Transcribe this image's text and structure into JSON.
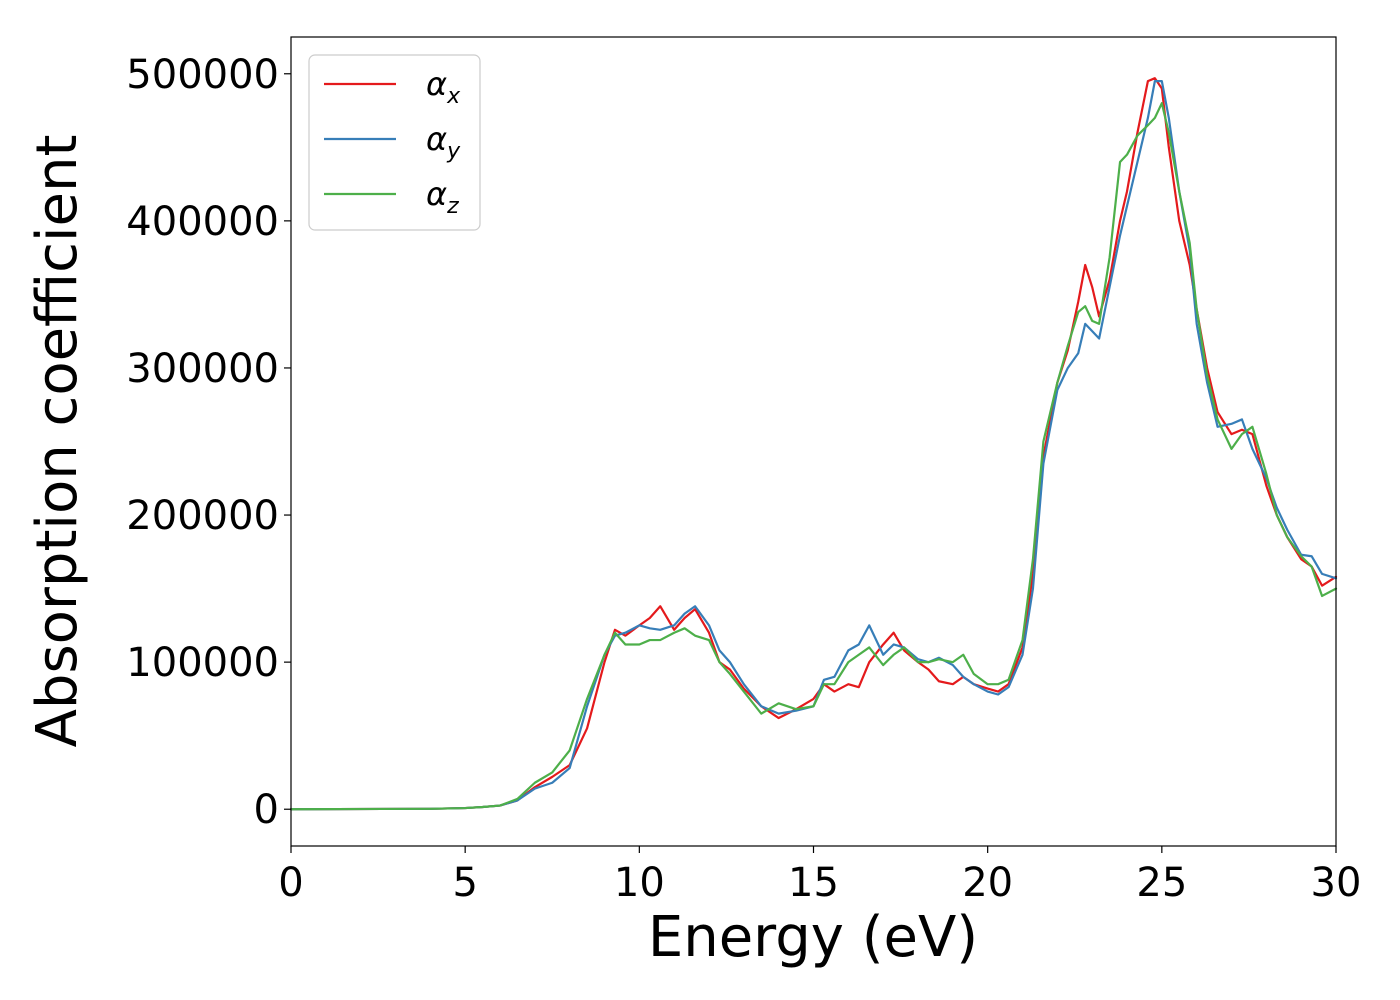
{
  "chart_data": {
    "type": "line",
    "title": "",
    "xlabel": "Energy (eV)",
    "ylabel": "Absorption coefficient",
    "xlim": [
      0,
      30
    ],
    "ylim": [
      -25000,
      525000
    ],
    "xticks": [
      0,
      5,
      10,
      15,
      20,
      25,
      30
    ],
    "yticks": [
      0,
      100000,
      200000,
      300000,
      400000,
      500000
    ],
    "grid": false,
    "legend_position": "top-left",
    "series": [
      {
        "name": "α_x",
        "symbol": "α",
        "subscript": "x",
        "color": "#e41a1c",
        "x": [
          0,
          4,
          5,
          5.5,
          6,
          6.5,
          7,
          7.5,
          8,
          8.5,
          9,
          9.3,
          9.6,
          10,
          10.3,
          10.6,
          11,
          11.3,
          11.6,
          12,
          12.3,
          12.6,
          13,
          13.5,
          14,
          14.5,
          15,
          15.3,
          15.6,
          16,
          16.3,
          16.6,
          17,
          17.3,
          17.6,
          18,
          18.3,
          18.6,
          19,
          19.3,
          19.6,
          20,
          20.3,
          20.6,
          21,
          21.3,
          21.6,
          22,
          22.3,
          22.6,
          22.8,
          23,
          23.2,
          23.5,
          23.8,
          24,
          24.3,
          24.6,
          24.8,
          25,
          25.2,
          25.5,
          25.8,
          26,
          26.3,
          26.6,
          27,
          27.3,
          27.6,
          28,
          28.3,
          28.6,
          29,
          29.3,
          29.6,
          30
        ],
        "y": [
          0,
          300,
          800,
          1500,
          2500,
          6000,
          15000,
          22000,
          30000,
          55000,
          100000,
          122000,
          118000,
          125000,
          130000,
          138000,
          122000,
          130000,
          136000,
          120000,
          100000,
          95000,
          82000,
          70000,
          62000,
          68000,
          75000,
          85000,
          80000,
          85000,
          83000,
          100000,
          112000,
          120000,
          108000,
          100000,
          95000,
          87000,
          85000,
          90000,
          85000,
          82000,
          80000,
          85000,
          110000,
          160000,
          240000,
          290000,
          312000,
          345000,
          370000,
          355000,
          335000,
          360000,
          400000,
          420000,
          460000,
          495000,
          497000,
          490000,
          450000,
          400000,
          370000,
          340000,
          300000,
          270000,
          255000,
          258000,
          255000,
          220000,
          200000,
          185000,
          170000,
          165000,
          152000,
          158000
        ]
      },
      {
        "name": "α_y",
        "symbol": "α",
        "subscript": "y",
        "color": "#377eb8",
        "x": [
          0,
          4,
          5,
          5.5,
          6,
          6.5,
          7,
          7.5,
          8,
          8.5,
          9,
          9.3,
          9.6,
          10,
          10.3,
          10.6,
          11,
          11.3,
          11.6,
          12,
          12.3,
          12.6,
          13,
          13.5,
          14,
          14.5,
          15,
          15.3,
          15.6,
          16,
          16.3,
          16.6,
          17,
          17.3,
          17.6,
          18,
          18.3,
          18.6,
          19,
          19.3,
          19.6,
          20,
          20.3,
          20.6,
          21,
          21.3,
          21.6,
          22,
          22.3,
          22.6,
          22.8,
          23,
          23.2,
          23.5,
          23.8,
          24,
          24.3,
          24.6,
          24.8,
          25,
          25.2,
          25.5,
          25.8,
          26,
          26.3,
          26.6,
          27,
          27.3,
          27.6,
          28,
          28.3,
          28.6,
          29,
          29.3,
          29.6,
          30
        ],
        "y": [
          0,
          300,
          800,
          1500,
          2500,
          6000,
          14000,
          18000,
          28000,
          70000,
          105000,
          118000,
          120000,
          125000,
          123000,
          122000,
          125000,
          133000,
          138000,
          125000,
          108000,
          100000,
          85000,
          70000,
          65000,
          67000,
          70000,
          88000,
          90000,
          108000,
          112000,
          125000,
          105000,
          112000,
          110000,
          102000,
          100000,
          103000,
          98000,
          90000,
          85000,
          80000,
          78000,
          83000,
          105000,
          150000,
          235000,
          285000,
          300000,
          310000,
          330000,
          325000,
          320000,
          355000,
          390000,
          410000,
          440000,
          470000,
          495000,
          495000,
          470000,
          420000,
          380000,
          330000,
          290000,
          260000,
          262000,
          265000,
          245000,
          225000,
          205000,
          190000,
          173000,
          172000,
          160000,
          157000
        ]
      },
      {
        "name": "α_z",
        "symbol": "α",
        "subscript": "z",
        "color": "#4daf4a",
        "x": [
          0,
          4,
          5,
          5.5,
          6,
          6.5,
          7,
          7.5,
          8,
          8.5,
          9,
          9.3,
          9.6,
          10,
          10.3,
          10.6,
          11,
          11.3,
          11.6,
          12,
          12.3,
          12.6,
          13,
          13.5,
          14,
          14.5,
          15,
          15.3,
          15.6,
          16,
          16.3,
          16.6,
          17,
          17.3,
          17.6,
          18,
          18.3,
          18.6,
          19,
          19.3,
          19.6,
          20,
          20.3,
          20.6,
          21,
          21.3,
          21.6,
          22,
          22.3,
          22.6,
          22.8,
          23,
          23.2,
          23.5,
          23.8,
          24,
          24.3,
          24.6,
          24.8,
          25,
          25.2,
          25.5,
          25.8,
          26,
          26.3,
          26.6,
          27,
          27.3,
          27.6,
          28,
          28.3,
          28.6,
          29,
          29.3,
          29.6,
          30
        ],
        "y": [
          0,
          300,
          800,
          1500,
          2500,
          7000,
          18000,
          25000,
          40000,
          75000,
          105000,
          120000,
          112000,
          112000,
          115000,
          115000,
          120000,
          123000,
          118000,
          115000,
          100000,
          92000,
          80000,
          65000,
          72000,
          68000,
          70000,
          85000,
          85000,
          100000,
          105000,
          110000,
          98000,
          105000,
          110000,
          100000,
          100000,
          102000,
          100000,
          105000,
          92000,
          85000,
          85000,
          88000,
          115000,
          170000,
          250000,
          290000,
          315000,
          338000,
          342000,
          332000,
          330000,
          375000,
          440000,
          445000,
          458000,
          465000,
          470000,
          480000,
          460000,
          420000,
          385000,
          340000,
          295000,
          265000,
          245000,
          255000,
          260000,
          228000,
          200000,
          185000,
          172000,
          165000,
          145000,
          150000
        ]
      }
    ]
  }
}
